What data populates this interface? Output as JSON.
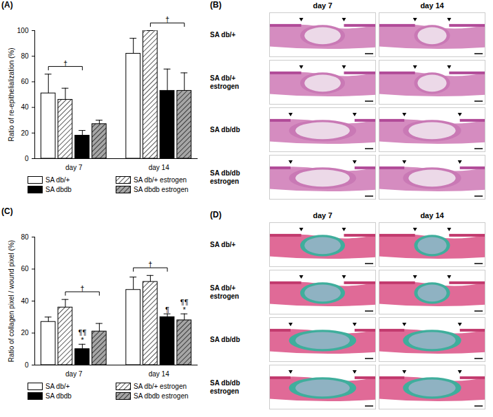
{
  "chart_data": [
    {
      "panel_label": "(A)",
      "type": "bar",
      "ylabel": "Ratio of re-epithelialization (%)",
      "categories": [
        "day 7",
        "day 14"
      ],
      "ylim": [
        0,
        100
      ],
      "yticks": [
        0,
        20,
        40,
        60,
        80,
        100
      ],
      "legend": "bottom",
      "series": [
        {
          "name": "SA db/+",
          "color": "#ffffff",
          "values": [
            51,
            82
          ],
          "errors": [
            15,
            12
          ]
        },
        {
          "name": "SA db/+ estrogen",
          "color": "#ffffff",
          "marker": "hatch",
          "values": [
            46,
            100
          ],
          "errors": [
            9,
            0
          ]
        },
        {
          "name": "SA dbdb",
          "color": "#000000",
          "values": [
            18,
            53
          ],
          "errors": [
            4,
            17
          ]
        },
        {
          "name": "SA dbdb estrogen",
          "color": "#a6a6a6",
          "marker": "hatch",
          "values": [
            27,
            53
          ],
          "errors": [
            3,
            14
          ]
        }
      ],
      "brackets": [
        {
          "category": "day 7",
          "from": "SA db/+",
          "to": "SA dbdb",
          "text": "†"
        },
        {
          "category": "day 14",
          "from": "SA db/+ estrogen",
          "to": "SA dbdb estrogen",
          "text": "†"
        }
      ]
    },
    {
      "panel_label": "(C)",
      "type": "bar",
      "ylabel": "Ratio of collagen pixel / wound pixel (%)",
      "categories": [
        "day 7",
        "day 14"
      ],
      "ylim": [
        0,
        80
      ],
      "yticks": [
        0,
        20,
        40,
        60,
        80
      ],
      "legend": "bottom",
      "series": [
        {
          "name": "SA db/+",
          "color": "#ffffff",
          "values": [
            27,
            47
          ],
          "errors": [
            3,
            8
          ]
        },
        {
          "name": "SA db/+ estrogen",
          "color": "#ffffff",
          "marker": "hatch",
          "values": [
            36,
            52
          ],
          "errors": [
            5,
            4
          ]
        },
        {
          "name": "SA dbdb",
          "color": "#000000",
          "values": [
            10,
            30
          ],
          "errors": [
            3,
            2
          ]
        },
        {
          "name": "SA dbdb estrogen",
          "color": "#a6a6a6",
          "marker": "hatch",
          "values": [
            21,
            28
          ],
          "errors": [
            5,
            4
          ]
        }
      ],
      "brackets": [
        {
          "category": "day 7",
          "from": "SA db/+ estrogen",
          "to": "SA dbdb estrogen",
          "text": "†"
        },
        {
          "category": "day 14",
          "from": "SA db/+",
          "to": "SA dbdb",
          "text": "†"
        }
      ],
      "annotations": [
        {
          "category": "day 7",
          "series": "SA dbdb",
          "lines": [
            "¶¶",
            "*"
          ]
        },
        {
          "category": "day 14",
          "series": "SA dbdb",
          "lines": [
            "¶"
          ]
        },
        {
          "category": "day 14",
          "series": "SA dbdb estrogen",
          "lines": [
            "¶¶",
            "*"
          ]
        }
      ]
    }
  ],
  "image_panels": [
    {
      "panel_label": "(B)",
      "columns": [
        "day 7",
        "day 14"
      ],
      "rows": [
        "SA db/+",
        "SA db/+ estrogen",
        "SA db/db",
        "SA db/db estrogen"
      ]
    },
    {
      "panel_label": "(D)",
      "columns": [
        "day 7",
        "day 14"
      ],
      "rows": [
        "SA db/+",
        "SA db/+ estrogen",
        "SA db/db",
        "SA db/db estrogen"
      ]
    }
  ]
}
